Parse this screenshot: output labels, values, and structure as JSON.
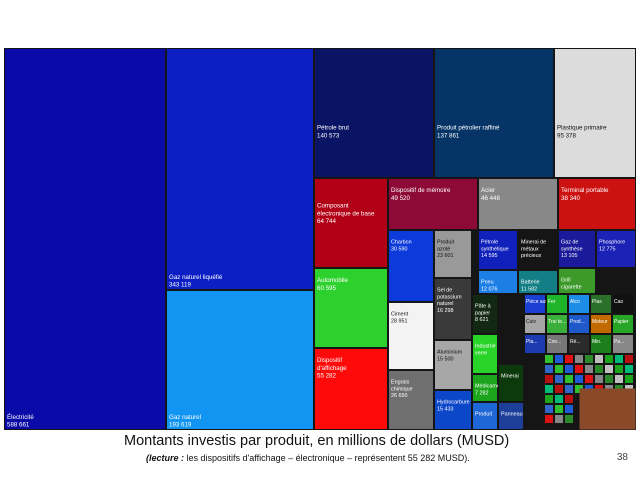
{
  "chart_data": {
    "type": "treemap",
    "unit": "MUSD",
    "title": "Montants investis par produit, en millions de dollars (MUSD)",
    "items": [
      {
        "name": "Électricité",
        "value": "588 661",
        "color": "#0a0aa8"
      },
      {
        "name": "Gaz naturel liquéfié",
        "value": "343 119",
        "color": "#0c1fc4"
      },
      {
        "name": "Gaz naturel",
        "value": "193 619",
        "color": "#1194f2"
      },
      {
        "name": "Pétrole brut",
        "value": "140 573",
        "color": "#0a1464"
      },
      {
        "name": "Produit pétrolier raffiné",
        "value": "137 861",
        "color": "#063467"
      },
      {
        "name": "Plastique primaire",
        "value": "95 378",
        "color": "#dcdcdc"
      },
      {
        "name": "Composant électronique de base",
        "value": "64 744",
        "color": "#b20016"
      },
      {
        "name": "Dispositif de mémoire",
        "value": "49 520",
        "color": "#8e0a36"
      },
      {
        "name": "Acier",
        "value": "46 448",
        "color": "#888888"
      },
      {
        "name": "Terminal portable",
        "value": "38 340",
        "color": "#cc1111"
      },
      {
        "name": "Automobile",
        "value": "60 595",
        "color": "#2dd12d"
      },
      {
        "name": "Dispositif d'affichage",
        "value": "55 282",
        "color": "#ff0a0a"
      },
      {
        "name": "Charbon",
        "value": "30 590",
        "color": "#0c3adb"
      },
      {
        "name": "Ciment",
        "value": "28 951",
        "color": "#f3f3f3"
      },
      {
        "name": "Engrais chimique",
        "value": "26 650",
        "color": "#6f6f6f"
      },
      {
        "name": "Produit azoté",
        "value": "23 601",
        "color": "#999999"
      },
      {
        "name": "Sel de potassium naturel",
        "value": "16 298",
        "color": "#3a3a3a"
      },
      {
        "name": "Aluminium",
        "value": "15 500",
        "color": "#a7a7a7"
      },
      {
        "name": "Hydrocarbure",
        "value": "15 433",
        "color": "#0d47c9"
      },
      {
        "name": "Pétrole synthétique",
        "value": "14 595",
        "color": "#1020bb"
      },
      {
        "name": "Minerai de métaux précieux",
        "value": "",
        "color": "#151515"
      },
      {
        "name": "Gaz de synthèse",
        "value": "13 105",
        "color": "#1a1a9a"
      },
      {
        "name": "Phosphore",
        "value": "12 775",
        "color": "#1c22b5"
      },
      {
        "name": "Pneu",
        "value": "12 076",
        "color": "#1d7ee6"
      },
      {
        "name": "Batterie",
        "value": "11 582",
        "color": "#137e86"
      },
      {
        "name": "Pâte à papier",
        "value": "8 621",
        "color": "#122812"
      },
      {
        "name": "Grill cigarette",
        "value": "",
        "color": "#3d9a2a"
      },
      {
        "name": "Industrie verre",
        "value": "",
        "color": "#28d428"
      },
      {
        "name": "Médicament",
        "value": "7 282",
        "color": "#1ca51c"
      },
      {
        "name": "Minerai",
        "value": "",
        "color": "#0c3a0c"
      },
      {
        "name": "Produit",
        "value": "",
        "color": "#1f67d6"
      },
      {
        "name": "Panneau",
        "value": "",
        "color": "#1d3f9a"
      }
    ],
    "small_labels": [
      "Pièce auto.",
      "Fer",
      "Alco",
      "Plas",
      "Cao",
      "Cuiv",
      "Trai te...",
      "Prod...",
      "Moteur",
      "Papier",
      "Pla...",
      "Con...",
      "Ré...",
      "Min.",
      "Pa..."
    ]
  },
  "caption": {
    "main": "Montants investis par produit, en millions de dollars (MUSD)",
    "note_prefix": "(lecture : ",
    "note_rest": "les dispositifs d'affichage – électronique – représentent 55 282 MUSD).",
    "page_number": "38",
    "more": "• • •"
  }
}
